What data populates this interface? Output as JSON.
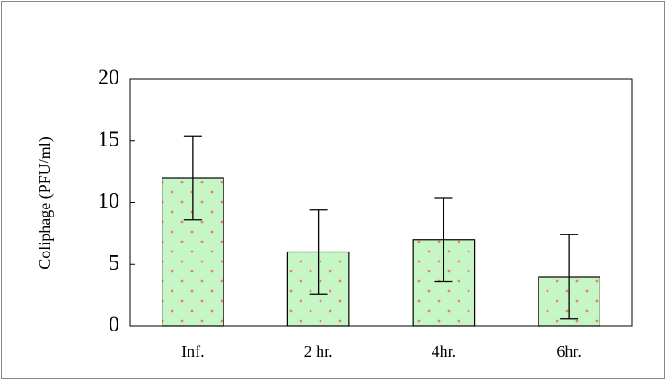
{
  "chart_data": {
    "type": "bar",
    "y_label": "Coliphage (PFU/ml)",
    "categories": [
      "Inf.",
      "2 hr.",
      "4hr.",
      "6hr."
    ],
    "values": [
      12,
      6,
      7,
      4
    ],
    "errors": [
      3.4,
      3.4,
      3.4,
      3.4
    ],
    "color": "#c6f5c6",
    "dot_color": "#e8806a",
    "ylim": [
      0,
      20
    ],
    "yticks": [
      0,
      5,
      10,
      15,
      20
    ],
    "grid": false
  }
}
